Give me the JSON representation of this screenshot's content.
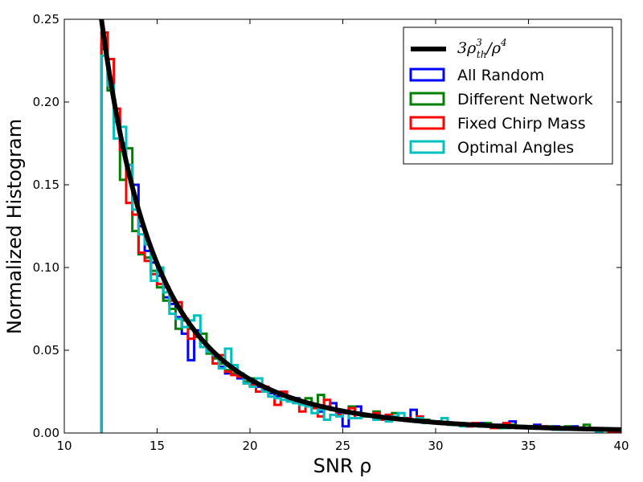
{
  "chart_data": {
    "type": "line",
    "title": "",
    "xlabel": "SNR ρ",
    "ylabel": "Normalized Histogram",
    "xlim": [
      10,
      40
    ],
    "ylim": [
      0,
      0.25
    ],
    "xticks": [
      "10",
      "15",
      "20",
      "25",
      "30",
      "35",
      "40"
    ],
    "yticks": [
      "0.00",
      "0.05",
      "0.10",
      "0.15",
      "0.20",
      "0.25"
    ],
    "grid": false,
    "legend_position": "top-right",
    "theory": {
      "name": "3ρ_th^3/ρ^4",
      "label_base": "3ρ",
      "label_sup": "3",
      "label_sub": "th",
      "label_tail": "/ρ",
      "label_tail_sup": "4",
      "color": "#000000",
      "rho_th": 12
    },
    "series": [
      {
        "name": "All Random",
        "color": "#0000ff",
        "x_start": 12,
        "bin_width": 0.333,
        "values": [
          0.235,
          0.213,
          0.19,
          0.175,
          0.162,
          0.15,
          0.125,
          0.11,
          0.103,
          0.095,
          0.082,
          0.078,
          0.07,
          0.06,
          0.044,
          0.062,
          0.055,
          0.05,
          0.046,
          0.04,
          0.036,
          0.039,
          0.033,
          0.031,
          0.03,
          0.028,
          0.026,
          0.024,
          0.022,
          0.025,
          0.02,
          0.021,
          0.019,
          0.018,
          0.016,
          0.013,
          0.016,
          0.018,
          0.012,
          0.004,
          0.012,
          0.016,
          0.011,
          0.01,
          0.009,
          0.01,
          0.011,
          0.008,
          0.009,
          0.008,
          0.014,
          0.007,
          0.008,
          0.007,
          0.007,
          0.006,
          0.006,
          0.006,
          0.005,
          0.004,
          0.005,
          0.006,
          0.004,
          0.004,
          0.005,
          0.003,
          0.007,
          0.004,
          0.004,
          0.003,
          0.005,
          0.004,
          0.003,
          0.004,
          0.002,
          0.003,
          0.004,
          0.002,
          0.003,
          0.002,
          0.002,
          0.002,
          0.002,
          0.002,
          0.001
        ]
      },
      {
        "name": "Different Network",
        "color": "#008000",
        "x_start": 12,
        "bin_width": 0.333,
        "values": [
          0.232,
          0.207,
          0.188,
          0.153,
          0.172,
          0.122,
          0.108,
          0.106,
          0.098,
          0.088,
          0.08,
          0.075,
          0.063,
          0.068,
          0.063,
          0.058,
          0.06,
          0.048,
          0.045,
          0.042,
          0.038,
          0.036,
          0.034,
          0.031,
          0.033,
          0.029,
          0.027,
          0.025,
          0.024,
          0.022,
          0.021,
          0.019,
          0.018,
          0.021,
          0.016,
          0.023,
          0.015,
          0.014,
          0.013,
          0.012,
          0.016,
          0.012,
          0.01,
          0.011,
          0.013,
          0.01,
          0.009,
          0.012,
          0.008,
          0.009,
          0.008,
          0.007,
          0.008,
          0.007,
          0.006,
          0.006,
          0.005,
          0.006,
          0.005,
          0.005,
          0.005,
          0.004,
          0.006,
          0.004,
          0.003,
          0.004,
          0.005,
          0.004,
          0.003,
          0.003,
          0.004,
          0.003,
          0.004,
          0.003,
          0.002,
          0.004,
          0.003,
          0.003,
          0.005,
          0.002,
          0.002,
          0.002,
          0.002,
          0.001,
          0.001
        ]
      },
      {
        "name": "Fixed Chirp Mass",
        "color": "#ff0000",
        "x_start": 12,
        "bin_width": 0.333,
        "values": [
          0.242,
          0.226,
          0.196,
          0.171,
          0.139,
          0.132,
          0.109,
          0.104,
          0.096,
          0.09,
          0.088,
          0.08,
          0.079,
          0.069,
          0.057,
          0.06,
          0.052,
          0.049,
          0.042,
          0.047,
          0.037,
          0.035,
          0.034,
          0.03,
          0.029,
          0.025,
          0.028,
          0.022,
          0.017,
          0.025,
          0.02,
          0.019,
          0.013,
          0.016,
          0.015,
          0.01,
          0.02,
          0.014,
          0.011,
          0.012,
          0.015,
          0.009,
          0.011,
          0.01,
          0.012,
          0.008,
          0.011,
          0.01,
          0.009,
          0.009,
          0.008,
          0.01,
          0.007,
          0.007,
          0.006,
          0.006,
          0.006,
          0.005,
          0.005,
          0.004,
          0.006,
          0.005,
          0.004,
          0.003,
          0.004,
          0.006,
          0.004,
          0.003,
          0.004,
          0.003,
          0.003,
          0.004,
          0.003,
          0.002,
          0.003,
          0.003,
          0.002,
          0.003,
          0.002,
          0.002,
          0.002,
          0.002,
          0.001,
          0.001,
          0.001
        ]
      },
      {
        "name": "Optimal Angles",
        "color": "#00bfbf",
        "x_start": 12,
        "bin_width": 0.333,
        "values": [
          0.228,
          0.21,
          0.178,
          0.185,
          0.162,
          0.135,
          0.12,
          0.114,
          0.092,
          0.1,
          0.085,
          0.072,
          0.069,
          0.064,
          0.068,
          0.071,
          0.052,
          0.049,
          0.047,
          0.039,
          0.051,
          0.041,
          0.036,
          0.03,
          0.028,
          0.033,
          0.025,
          0.022,
          0.021,
          0.02,
          0.019,
          0.018,
          0.017,
          0.016,
          0.012,
          0.014,
          0.008,
          0.011,
          0.01,
          0.013,
          0.009,
          0.009,
          0.011,
          0.01,
          0.008,
          0.009,
          0.007,
          0.01,
          0.012,
          0.008,
          0.007,
          0.009,
          0.006,
          0.006,
          0.007,
          0.009,
          0.005,
          0.005,
          0.004,
          0.005,
          0.005,
          0.004,
          0.005,
          0.004,
          0.004,
          0.003,
          0.004,
          0.003,
          0.003,
          0.004,
          0.003,
          0.003,
          0.003,
          0.002,
          0.003,
          0.002,
          0.002,
          0.003,
          0.002,
          0.002,
          0.001,
          0.002,
          0.002,
          0.002,
          0.002
        ]
      }
    ]
  }
}
